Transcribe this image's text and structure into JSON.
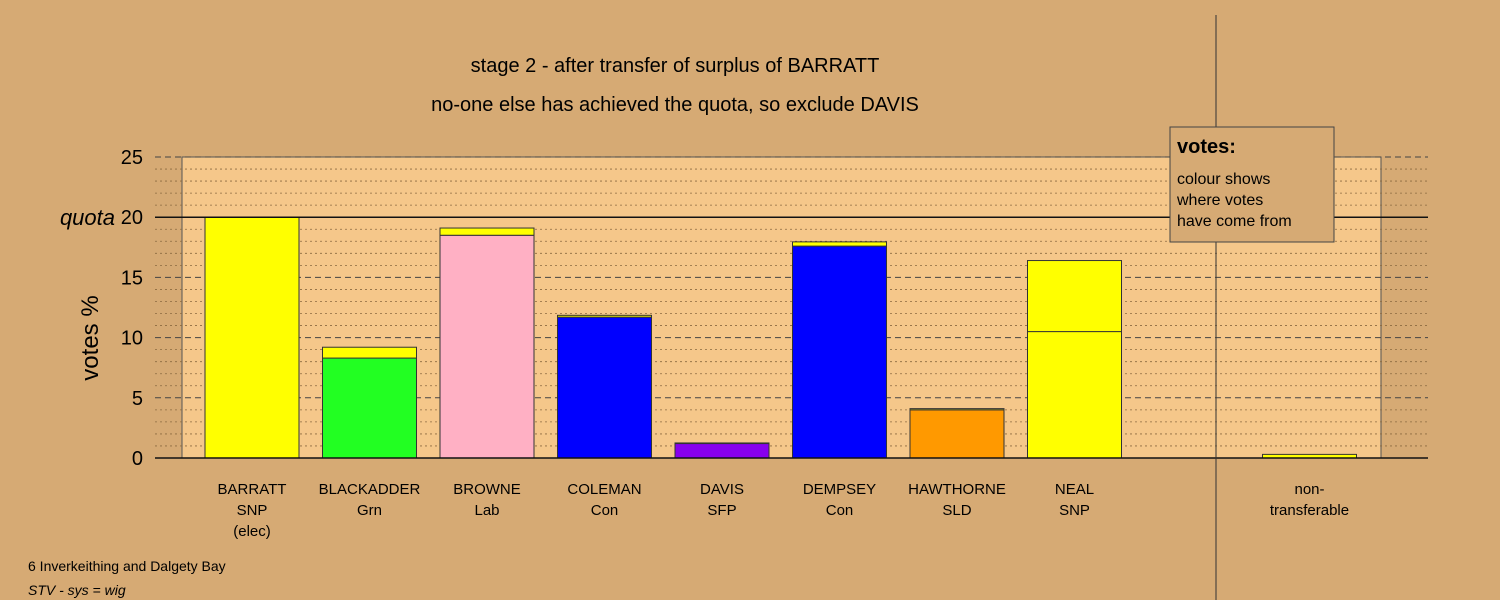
{
  "chart_data": {
    "type": "bar",
    "stacked": true,
    "title": "stage 2 - after transfer of surplus of BARRATT",
    "subtitle": "no-one else has achieved the quota, so exclude DAVIS",
    "ylabel": "votes %",
    "ylim": [
      0,
      25
    ],
    "yticks": [
      0,
      5,
      10,
      15,
      20,
      25
    ],
    "quota": 20,
    "quota_label": "quota",
    "grid": true,
    "categories": [
      {
        "name": "BARRATT",
        "party": "SNP",
        "note": "(elec)"
      },
      {
        "name": "BLACKADDER",
        "party": "Grn",
        "note": ""
      },
      {
        "name": "BROWNE",
        "party": "Lab",
        "note": ""
      },
      {
        "name": "COLEMAN",
        "party": "Con",
        "note": ""
      },
      {
        "name": "DAVIS",
        "party": "SFP",
        "note": ""
      },
      {
        "name": "DEMPSEY",
        "party": "Con",
        "note": ""
      },
      {
        "name": "HAWTHORNE",
        "party": "SLD",
        "note": ""
      },
      {
        "name": "NEAL",
        "party": "SNP",
        "note": ""
      },
      {
        "name": "",
        "party": "",
        "note": ""
      },
      {
        "name": "non-",
        "party": "transferable",
        "note": ""
      }
    ],
    "bars": [
      [
        {
          "value": 20.0,
          "color": "#ffff00"
        }
      ],
      [
        {
          "value": 8.3,
          "color": "#22ff22"
        },
        {
          "value": 0.9,
          "color": "#ffff00"
        }
      ],
      [
        {
          "value": 18.5,
          "color": "#ffb0c4"
        },
        {
          "value": 0.6,
          "color": "#ffff00"
        }
      ],
      [
        {
          "value": 11.7,
          "color": "#0000ff"
        },
        {
          "value": 0.15,
          "color": "#ffff00"
        }
      ],
      [
        {
          "value": 1.2,
          "color": "#8800ee"
        },
        {
          "value": 0.05,
          "color": "#ffff00"
        }
      ],
      [
        {
          "value": 17.6,
          "color": "#0000ff"
        },
        {
          "value": 0.35,
          "color": "#ffff00"
        }
      ],
      [
        {
          "value": 4.0,
          "color": "#ff9900"
        },
        {
          "value": 0.1,
          "color": "#ffff00"
        }
      ],
      [
        {
          "value": 10.5,
          "color": "#ffff00"
        },
        {
          "value": 5.9,
          "color": "#ffff00"
        }
      ],
      [],
      [
        {
          "value": 0.3,
          "color": "#ffff00"
        }
      ]
    ],
    "legend": {
      "position": "top-right",
      "title": "votes:",
      "lines": [
        "colour shows",
        "where votes",
        "have come from"
      ]
    }
  },
  "captions": {
    "ward": "6 Inverkeithing and Dalgety Bay",
    "system": "STV - sys = wig"
  },
  "colors": {
    "background": "#d6aa74",
    "plot_area": "#f5c78a"
  }
}
